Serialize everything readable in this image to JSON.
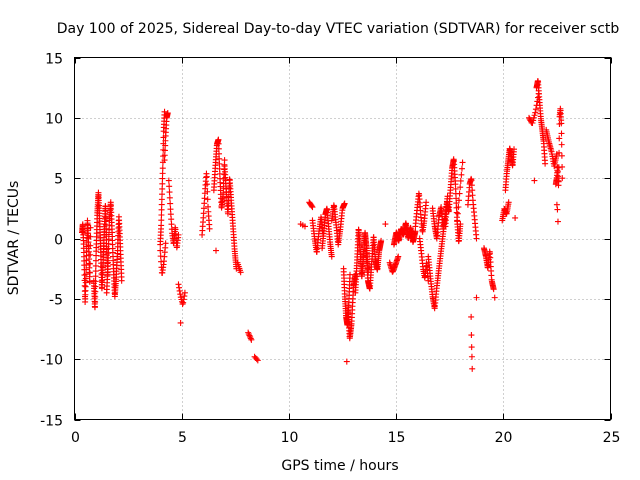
{
  "chart_data": {
    "type": "scatter",
    "title": "Day 100 of 2025, Sidereal Day-to-day VTEC variation (SDTVAR) for receiver sctb",
    "xlabel": "GPS time / hours",
    "ylabel": "SDTVAR / TECUs",
    "xlim": [
      0,
      25
    ],
    "ylim": [
      -15,
      15
    ],
    "xticks": [
      0,
      5,
      10,
      15,
      20,
      25
    ],
    "yticks": [
      -15,
      -10,
      -5,
      0,
      5,
      10,
      15
    ],
    "x_tick_labels": [
      "0",
      "5",
      "10",
      "15",
      "20",
      "25"
    ],
    "y_tick_labels": [
      "-15",
      "-10",
      "-5",
      "0",
      "5",
      "10",
      "15"
    ],
    "grid": true,
    "marker": "+",
    "color": "#ff0000",
    "segments": [
      {
        "x0": 0.35,
        "x1": 0.75,
        "ys": [
          0.5,
          1.2,
          -0.3,
          -2.5,
          -5.3,
          -3.2,
          -0.8,
          1.5,
          0.2,
          -1.5,
          -3.8,
          0.9
        ],
        "n": 70
      },
      {
        "x0": 0.9,
        "x1": 1.55,
        "ys": [
          -3.5,
          -5.8,
          -1.2,
          2.0,
          3.8,
          1.5,
          -1.0,
          -4.2,
          -2.0,
          0.5,
          2.8,
          -0.5,
          -3.0
        ],
        "n": 130
      },
      {
        "x0": 1.5,
        "x1": 2.2,
        "ys": [
          -4.5,
          -2.0,
          1.5,
          3.0,
          0.5,
          -2.5,
          -4.8,
          -3.2,
          -1.0,
          1.8,
          -0.7,
          -3.5
        ],
        "n": 100
      },
      {
        "x0": 4.0,
        "x1": 4.2,
        "ys": [
          -0.5,
          1.0,
          3.5,
          6.0,
          9.0,
          10.5
        ],
        "n": 30
      },
      {
        "x0": 4.0,
        "x1": 4.25,
        "ys": [
          -1.0,
          -3.0,
          -2.0,
          -0.4
        ],
        "n": 14
      },
      {
        "x0": 4.2,
        "x1": 4.35,
        "ys": [
          6.5,
          8.5,
          10.0,
          10.4
        ],
        "n": 16
      },
      {
        "x0": 4.4,
        "x1": 4.85,
        "ys": [
          4.8,
          2.5,
          0.5,
          -0.5,
          1.0,
          -0.8,
          0.3
        ],
        "n": 30
      },
      {
        "x0": 4.85,
        "x1": 5.15,
        "ys": [
          -3.8,
          -4.8,
          -5.5,
          -4.5
        ],
        "n": 12
      },
      {
        "x0": 4.95,
        "x1": 4.95,
        "ys": [
          -7.0
        ],
        "n": 1
      },
      {
        "x0": 5.95,
        "x1": 6.3,
        "ys": [
          0.3,
          2.0,
          4.0,
          5.5,
          2.5,
          0.8
        ],
        "n": 25
      },
      {
        "x0": 6.5,
        "x1": 7.0,
        "ys": [
          4.0,
          6.0,
          7.8,
          8.2,
          5.0,
          2.5,
          3.5,
          6.5
        ],
        "n": 55
      },
      {
        "x0": 6.6,
        "x1": 6.6,
        "ys": [
          -1.0
        ],
        "n": 1
      },
      {
        "x0": 7.0,
        "x1": 7.55,
        "ys": [
          6.0,
          4.0,
          2.0,
          5.0,
          3.0,
          1.0,
          -1.0,
          -2.5
        ],
        "n": 60
      },
      {
        "x0": 7.6,
        "x1": 7.75,
        "ys": [
          -2.0,
          -2.8
        ],
        "n": 6
      },
      {
        "x0": 8.1,
        "x1": 8.25,
        "ys": [
          -7.8,
          -8.4
        ],
        "n": 6
      },
      {
        "x0": 8.4,
        "x1": 8.55,
        "ys": [
          -9.8,
          -10.1
        ],
        "n": 4
      },
      {
        "x0": 10.55,
        "x1": 10.75,
        "ys": [
          1.2,
          1.0
        ],
        "n": 3
      },
      {
        "x0": 10.95,
        "x1": 11.1,
        "ys": [
          3.0,
          2.6
        ],
        "n": 6
      },
      {
        "x0": 11.1,
        "x1": 11.6,
        "ys": [
          1.5,
          0.0,
          -1.2,
          0.5,
          1.8,
          0.2
        ],
        "n": 35
      },
      {
        "x0": 11.55,
        "x1": 12.0,
        "ys": [
          -0.8,
          0.5,
          2.0,
          2.5,
          1.0,
          -0.4,
          -1.5
        ],
        "n": 40
      },
      {
        "x0": 12.0,
        "x1": 12.6,
        "ys": [
          1.5,
          2.8,
          1.2,
          -0.5,
          0.8,
          2.5,
          2.9
        ],
        "n": 45
      },
      {
        "x0": 12.55,
        "x1": 12.85,
        "ys": [
          -2.5,
          -4.8,
          -6.5,
          -7.2,
          -5.5,
          -3.0
        ],
        "n": 45
      },
      {
        "x0": 12.75,
        "x1": 13.1,
        "ys": [
          -6.0,
          -8.3,
          -7.0,
          -4.0,
          -3.0
        ],
        "n": 40
      },
      {
        "x0": 12.7,
        "x1": 12.7,
        "ys": [
          -10.2
        ],
        "n": 1
      },
      {
        "x0": 13.1,
        "x1": 13.7,
        "ys": [
          -4.5,
          -2.0,
          0.8,
          -1.0,
          -3.2,
          -1.5,
          0.5,
          -0.8,
          -2.8
        ],
        "n": 90
      },
      {
        "x0": 13.6,
        "x1": 14.3,
        "ys": [
          -1.0,
          -3.5,
          -4.2,
          -2.0,
          0.2,
          -1.8,
          -2.6,
          -1.0,
          -0.2
        ],
        "n": 80
      },
      {
        "x0": 14.5,
        "x1": 14.5,
        "ys": [
          1.2
        ],
        "n": 1
      },
      {
        "x0": 14.7,
        "x1": 15.1,
        "ys": [
          -2.0,
          -2.8,
          -2.2,
          -1.5
        ],
        "n": 20
      },
      {
        "x0": 14.9,
        "x1": 15.9,
        "ys": [
          -0.5,
          0.5,
          -0.2,
          0.8,
          0.3,
          1.3,
          0.0,
          0.9,
          -0.3,
          0.6
        ],
        "n": 90
      },
      {
        "x0": 15.9,
        "x1": 16.4,
        "ys": [
          1.0,
          2.5,
          3.8,
          2.0,
          0.5,
          1.5,
          3.0
        ],
        "n": 35
      },
      {
        "x0": 16.1,
        "x1": 16.5,
        "ys": [
          0.0,
          -1.2,
          -2.5,
          -3.3,
          -2.0,
          -3.5
        ],
        "n": 25
      },
      {
        "x0": 16.5,
        "x1": 17.3,
        "ys": [
          -1.5,
          -3.2,
          -4.8,
          -5.8,
          -4.0,
          -2.5,
          -1.0,
          0.5,
          2.0
        ],
        "n": 60
      },
      {
        "x0": 16.7,
        "x1": 17.4,
        "ys": [
          2.5,
          1.0,
          0.0,
          1.8,
          2.6,
          0.8,
          2.0,
          3.5
        ],
        "n": 50
      },
      {
        "x0": 17.3,
        "x1": 18.0,
        "ys": [
          1.0,
          3.0,
          2.2,
          4.0,
          5.8,
          6.6,
          4.5,
          1.5,
          -0.3,
          1.2
        ],
        "n": 70
      },
      {
        "x0": 17.85,
        "x1": 18.1,
        "ys": [
          1.5,
          4.0,
          6.3
        ],
        "n": 10
      },
      {
        "x0": 18.35,
        "x1": 18.75,
        "ys": [
          2.8,
          4.5,
          5.0,
          3.0,
          1.5,
          0.0
        ],
        "n": 25
      },
      {
        "x0": 18.5,
        "x1": 18.55,
        "ys": [
          -6.5,
          -8.0,
          -9.0,
          -9.8,
          -10.8
        ],
        "n": 5
      },
      {
        "x0": 18.75,
        "x1": 18.75,
        "ys": [
          -4.9
        ],
        "n": 1
      },
      {
        "x0": 19.1,
        "x1": 19.55,
        "ys": [
          -0.8,
          -1.5,
          -2.5,
          -1.0,
          -3.5,
          -4.2
        ],
        "n": 35
      },
      {
        "x0": 19.6,
        "x1": 19.6,
        "ys": [
          -4.9
        ],
        "n": 1
      },
      {
        "x0": 19.95,
        "x1": 20.25,
        "ys": [
          1.5,
          2.5,
          2.0,
          3.0
        ],
        "n": 20
      },
      {
        "x0": 20.1,
        "x1": 20.5,
        "ys": [
          4.0,
          5.5,
          6.5,
          7.5,
          6.8,
          6.0,
          7.4
        ],
        "n": 40
      },
      {
        "x0": 20.55,
        "x1": 20.55,
        "ys": [
          1.7
        ],
        "n": 1
      },
      {
        "x0": 21.2,
        "x1": 21.65,
        "ys": [
          10.0,
          9.5,
          10.5,
          12.0
        ],
        "n": 15
      },
      {
        "x0": 21.55,
        "x1": 21.95,
        "ys": [
          12.5,
          13.1,
          11.5,
          10.0,
          9.0,
          8.0,
          6.2
        ],
        "n": 40
      },
      {
        "x0": 21.45,
        "x1": 21.45,
        "ys": [
          4.8
        ],
        "n": 1
      },
      {
        "x0": 22.0,
        "x1": 22.5,
        "ys": [
          9.0,
          8.0,
          7.2,
          6.0,
          7.0
        ],
        "n": 25
      },
      {
        "x0": 22.45,
        "x1": 22.75,
        "ys": [
          4.5,
          5.0,
          6.0,
          4.2,
          10.0,
          10.8,
          9.5,
          5.0
        ],
        "n": 35
      },
      {
        "x0": 22.5,
        "x1": 22.55,
        "ys": [
          2.8,
          2.4,
          1.4
        ],
        "n": 3
      }
    ]
  }
}
